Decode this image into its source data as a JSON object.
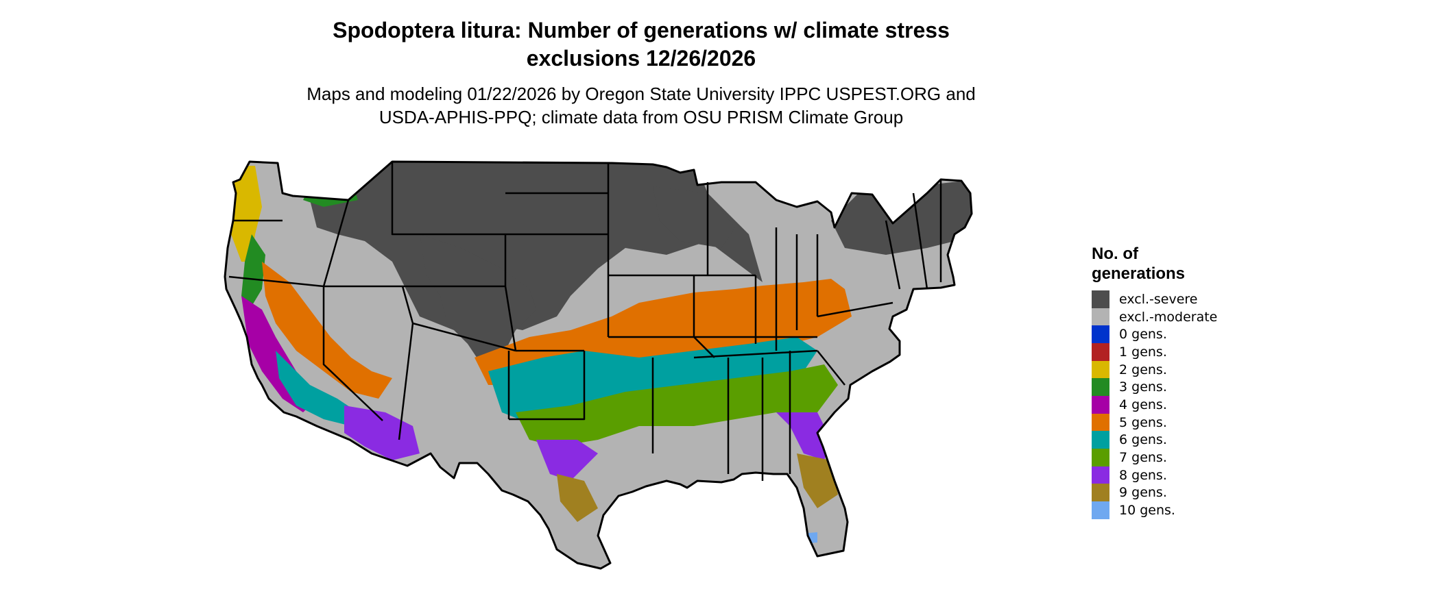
{
  "title": {
    "line1": "Spodoptera litura: Number of generations w/ climate stress",
    "line2": "exclusions 12/26/2026"
  },
  "subtitle": {
    "line1": "Maps and modeling 01/22/2026 by Oregon State University IPPC USPEST.ORG and",
    "line2": "USDA-APHIS-PPQ; climate data from OSU PRISM Climate Group"
  },
  "legend": {
    "title_line1": "No. of",
    "title_line2": "generations",
    "items": [
      {
        "label": "excl.-severe",
        "color": "#4d4d4d"
      },
      {
        "label": "excl.-moderate",
        "color": "#b3b3b3"
      },
      {
        "label": "0 gens.",
        "color": "#0033cc"
      },
      {
        "label": "1 gens.",
        "color": "#b22222"
      },
      {
        "label": "2 gens.",
        "color": "#d9b800"
      },
      {
        "label": "3 gens.",
        "color": "#228b22"
      },
      {
        "label": "4 gens.",
        "color": "#a600a6"
      },
      {
        "label": "5 gens.",
        "color": "#e07000"
      },
      {
        "label": "6 gens.",
        "color": "#00a0a0"
      },
      {
        "label": "7 gens.",
        "color": "#5a9e00"
      },
      {
        "label": "8 gens.",
        "color": "#8a2be2"
      },
      {
        "label": "9 gens.",
        "color": "#a08020"
      },
      {
        "label": "10 gens.",
        "color": "#6fa8f0"
      }
    ]
  }
}
